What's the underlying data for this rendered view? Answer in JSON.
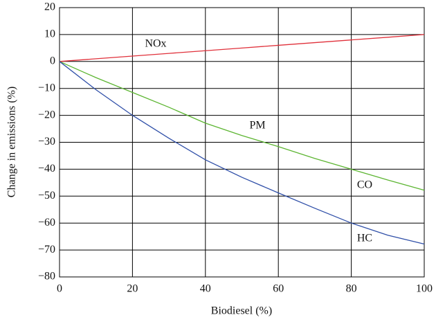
{
  "chart_data": {
    "type": "line",
    "x_label": "Biodiesel (%)",
    "y_label": "Change in emissions (%)",
    "x": [
      0,
      10,
      20,
      30,
      40,
      50,
      60,
      70,
      80,
      90,
      100
    ],
    "series": [
      {
        "name": "NOx",
        "color": "#e0303a",
        "values": [
          0,
          1,
          2,
          3,
          4,
          5,
          6,
          7,
          8,
          9,
          10
        ]
      },
      {
        "name": "PM",
        "color": "#5cb531",
        "values": [
          0,
          -6,
          -11.5,
          -17,
          -22.9,
          -27.5,
          -31.6,
          -36,
          -40,
          -44,
          -47.8
        ]
      },
      {
        "name": "HC",
        "color": "#2f4fa8",
        "values": [
          0,
          -10.5,
          -20,
          -28.5,
          -36.5,
          -43,
          -48.8,
          -54.5,
          -60,
          -64.5,
          -67.8
        ]
      }
    ],
    "annotations": [
      "CO"
    ],
    "xlim": [
      0,
      100
    ],
    "xticks": [
      0,
      20,
      40,
      60,
      80,
      100
    ],
    "ylim": [
      -80,
      20
    ],
    "yticks": [
      {
        "value": -80,
        "label": "−80"
      },
      {
        "value": -70,
        "label": "−70"
      },
      {
        "value": -60,
        "label": "−60"
      },
      {
        "value": -50,
        "label": "−50"
      },
      {
        "value": -40,
        "label": "−40"
      },
      {
        "value": -30,
        "label": "−30"
      },
      {
        "value": -20,
        "label": "−20"
      },
      {
        "value": -10,
        "label": "−10"
      },
      0,
      10,
      20
    ],
    "grid": true
  }
}
